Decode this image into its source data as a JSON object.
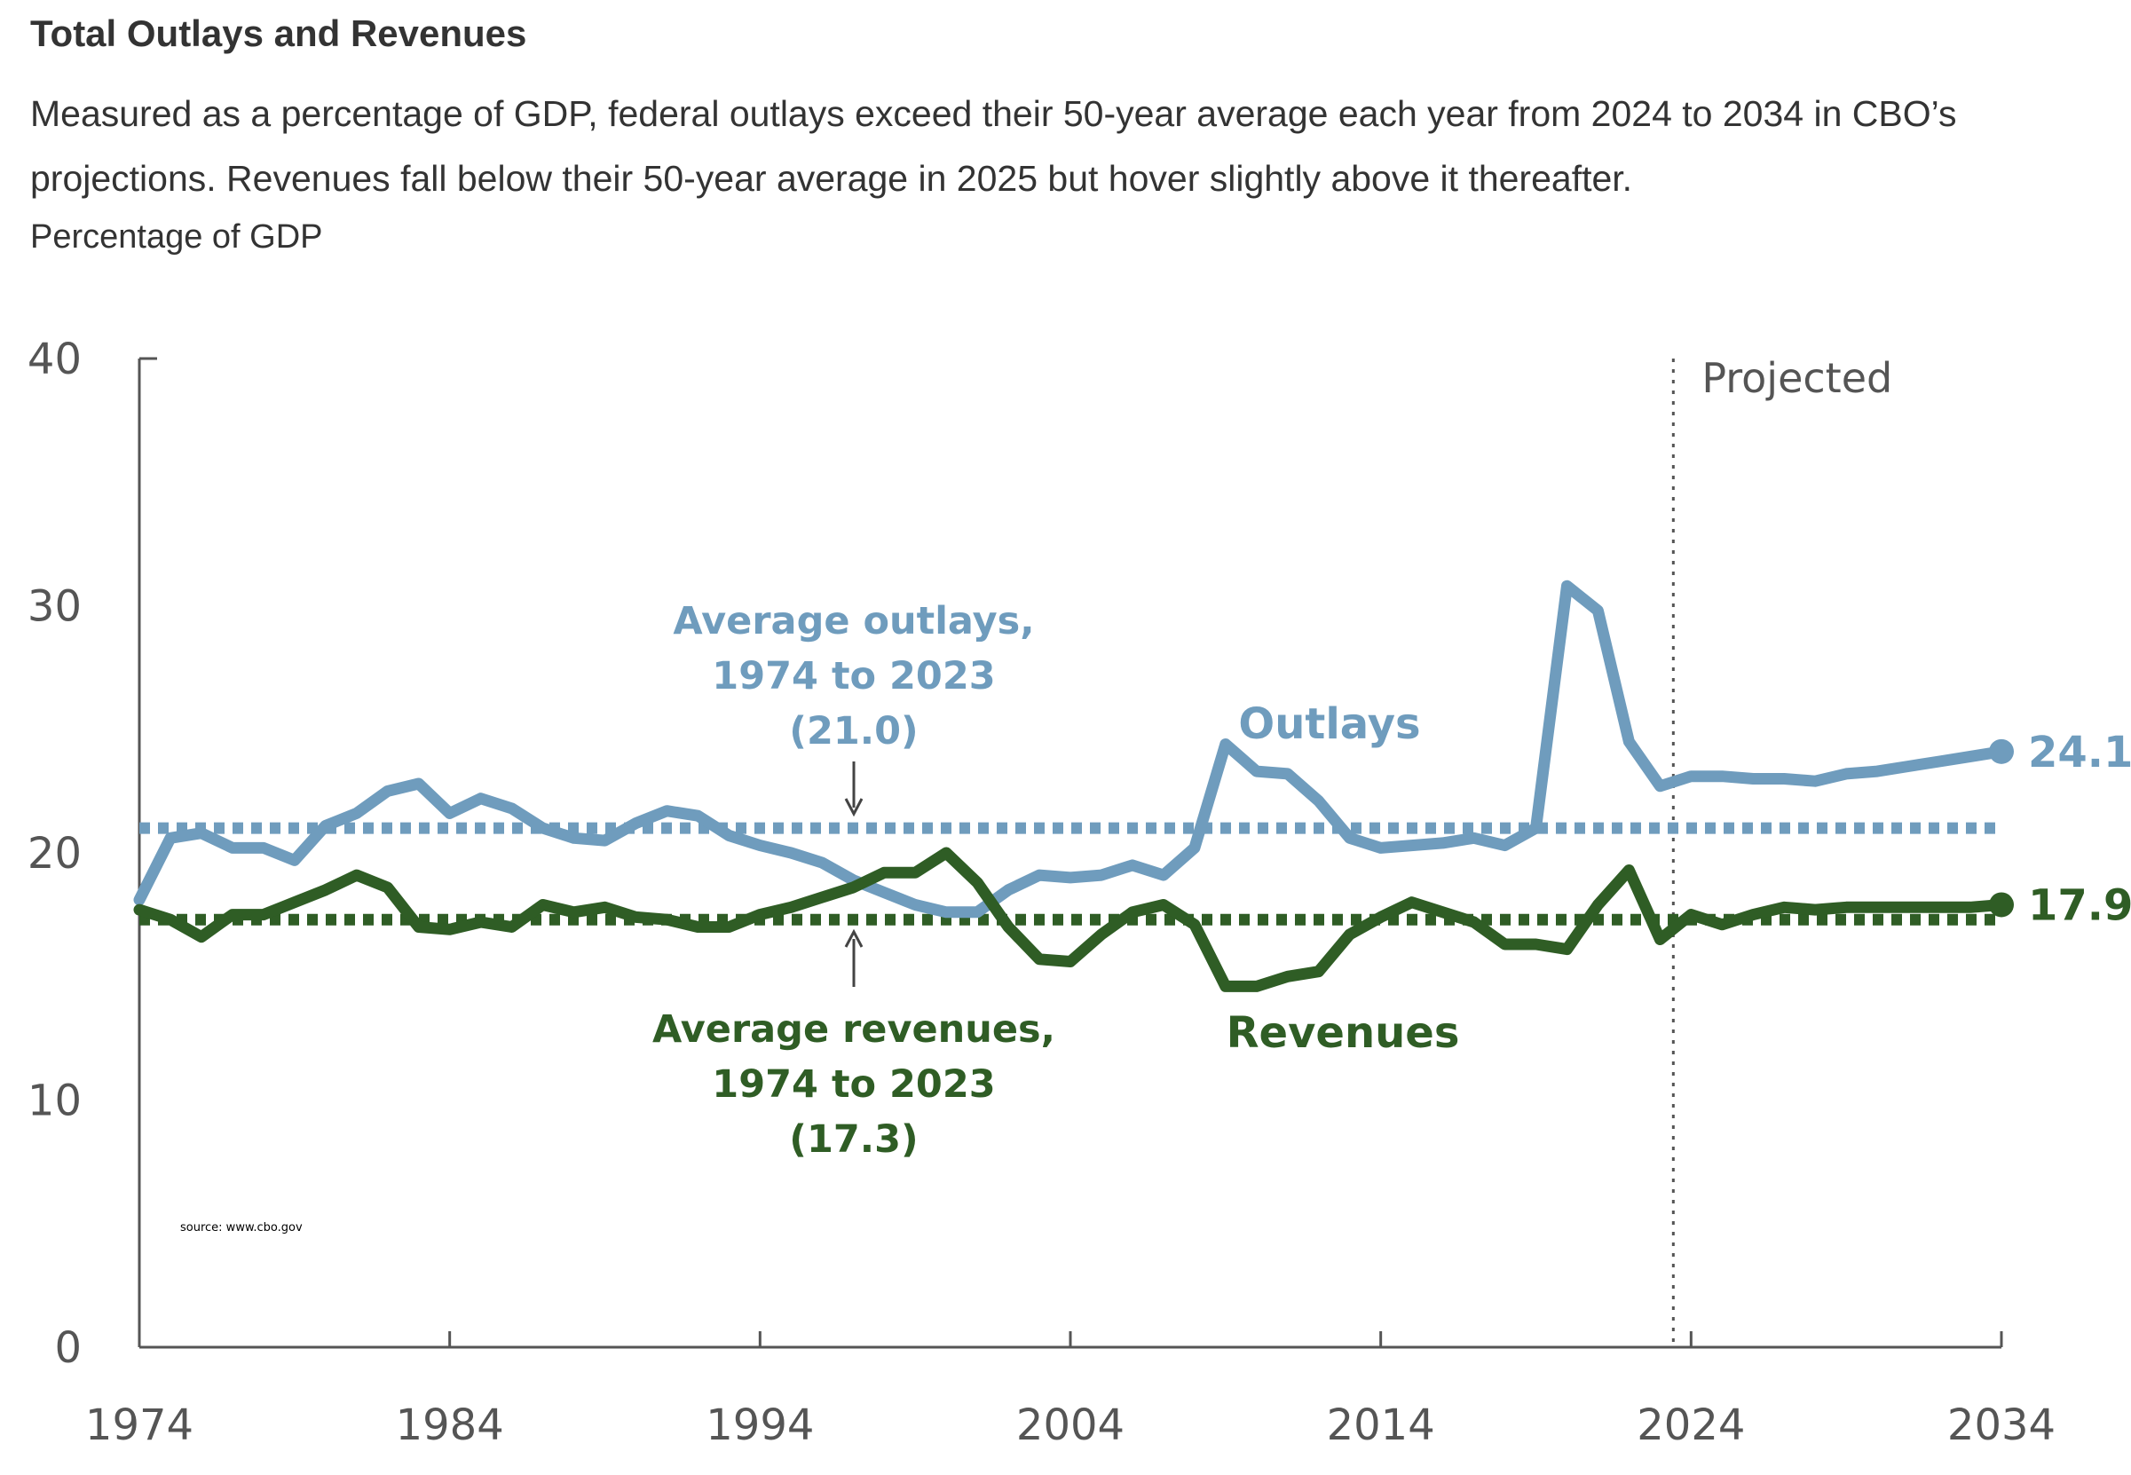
{
  "header": {
    "title": "Total Outlays and Revenues",
    "subtitle": "Measured as a percentage of GDP, federal outlays exceed their 50-year average each year from 2024 to 2034 in CBO’s projections. Revenues fall below their 50-year average in 2025 but hover slightly above it thereafter.",
    "units": "Percentage of GDP"
  },
  "chart_data": {
    "type": "line",
    "ylim": [
      0,
      40
    ],
    "xlim": [
      1974,
      2034
    ],
    "y_ticks": [
      "0",
      "10",
      "20",
      "30",
      "40"
    ],
    "x_ticks": [
      "1974",
      "1984",
      "1994",
      "2004",
      "2014",
      "2024",
      "2034"
    ],
    "grid": false,
    "projection_start": 2024,
    "projection_label": "Projected",
    "colors": {
      "outlays": "#6f9cbd",
      "revenues": "#2f5d25"
    },
    "series": [
      {
        "name": "Outlays",
        "color": "#6f9cbd",
        "end_label": "24.1",
        "x": [
          1974,
          1975,
          1976,
          1977,
          1978,
          1979,
          1980,
          1981,
          1982,
          1983,
          1984,
          1985,
          1986,
          1987,
          1988,
          1989,
          1990,
          1991,
          1992,
          1993,
          1994,
          1995,
          1996,
          1997,
          1998,
          1999,
          2000,
          2001,
          2002,
          2003,
          2004,
          2005,
          2006,
          2007,
          2008,
          2009,
          2010,
          2011,
          2012,
          2013,
          2014,
          2015,
          2016,
          2017,
          2018,
          2019,
          2020,
          2021,
          2022,
          2023,
          2024,
          2025,
          2026,
          2027,
          2028,
          2029,
          2030,
          2031,
          2032,
          2033,
          2034
        ],
        "values": [
          18.1,
          20.6,
          20.8,
          20.2,
          20.2,
          19.7,
          21.1,
          21.6,
          22.5,
          22.8,
          21.6,
          22.2,
          21.8,
          21.0,
          20.6,
          20.5,
          21.2,
          21.7,
          21.5,
          20.7,
          20.3,
          20.0,
          19.6,
          18.9,
          18.4,
          17.9,
          17.6,
          17.6,
          18.5,
          19.1,
          19.0,
          19.1,
          19.5,
          19.1,
          20.2,
          24.4,
          23.3,
          23.2,
          22.1,
          20.6,
          20.2,
          20.3,
          20.4,
          20.6,
          20.3,
          21.0,
          30.8,
          29.8,
          24.5,
          22.7,
          23.1,
          23.1,
          23.0,
          23.0,
          22.9,
          23.2,
          23.3,
          23.5,
          23.7,
          23.9,
          24.1
        ]
      },
      {
        "name": "Revenues",
        "color": "#2f5d25",
        "end_label": "17.9",
        "x": [
          1974,
          1975,
          1976,
          1977,
          1978,
          1979,
          1980,
          1981,
          1982,
          1983,
          1984,
          1985,
          1986,
          1987,
          1988,
          1989,
          1990,
          1991,
          1992,
          1993,
          1994,
          1995,
          1996,
          1997,
          1998,
          1999,
          2000,
          2001,
          2002,
          2003,
          2004,
          2005,
          2006,
          2007,
          2008,
          2009,
          2010,
          2011,
          2012,
          2013,
          2014,
          2015,
          2016,
          2017,
          2018,
          2019,
          2020,
          2021,
          2022,
          2023,
          2024,
          2025,
          2026,
          2027,
          2028,
          2029,
          2030,
          2031,
          2032,
          2033,
          2034
        ],
        "values": [
          17.7,
          17.3,
          16.6,
          17.5,
          17.5,
          18.0,
          18.5,
          19.1,
          18.6,
          17.0,
          16.9,
          17.2,
          17.0,
          17.9,
          17.6,
          17.8,
          17.4,
          17.3,
          17.0,
          17.0,
          17.5,
          17.8,
          18.2,
          18.6,
          19.2,
          19.2,
          20.0,
          18.8,
          17.0,
          15.7,
          15.6,
          16.7,
          17.6,
          17.9,
          17.1,
          14.6,
          14.6,
          15.0,
          15.2,
          16.7,
          17.4,
          18.0,
          17.6,
          17.2,
          16.3,
          16.3,
          16.1,
          17.9,
          19.3,
          16.5,
          17.5,
          17.1,
          17.5,
          17.8,
          17.7,
          17.8,
          17.8,
          17.8,
          17.8,
          17.8,
          17.9
        ]
      }
    ],
    "averages": [
      {
        "name": "Average outlays",
        "value": 21.0,
        "color": "#6f9cbd",
        "label_lines": [
          "Average outlays,",
          "1974 to 2023",
          "(21.0)"
        ]
      },
      {
        "name": "Average revenues",
        "value": 17.3,
        "color": "#2f5d25",
        "label_lines": [
          "Average revenues,",
          "1974 to 2023",
          "(17.3)"
        ]
      }
    ],
    "series_labels": {
      "outlays": "Outlays",
      "revenues": "Revenues"
    },
    "source_note": "source: www.cbo.gov"
  }
}
